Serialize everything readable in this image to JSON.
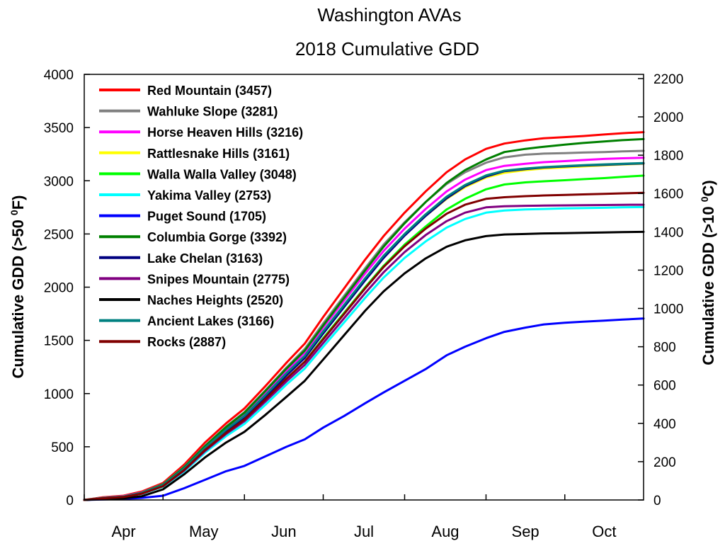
{
  "chart_data": {
    "type": "line",
    "title": "Washington AVAs",
    "subtitle": "2018 Cumulative GDD",
    "ylabel": "Cumulative GDD (>50 °F)",
    "ylabel_parts": {
      "base": "Cumulative GDD (>50 ",
      "sup": "0",
      "end": "F)"
    },
    "y2label": "Cumulative GDD (>10 °C)",
    "y2label_parts": {
      "base": "Cumulative GDD (>10 ",
      "sup": "0",
      "end": "C)"
    },
    "ylim": [
      0,
      4000
    ],
    "yticks": [
      0,
      500,
      1000,
      1500,
      2000,
      2500,
      3000,
      3500,
      4000
    ],
    "y2lim": [
      0,
      2222
    ],
    "y2ticks": [
      0,
      200,
      400,
      600,
      800,
      1000,
      1200,
      1400,
      1600,
      1800,
      2000,
      2200
    ],
    "x_unit": "day of year",
    "xlim": [
      91,
      304
    ],
    "months": [
      {
        "label": "Apr",
        "start": 91,
        "end": 121
      },
      {
        "label": "May",
        "start": 121,
        "end": 152
      },
      {
        "label": "Jun",
        "start": 152,
        "end": 182
      },
      {
        "label": "Jul",
        "start": 182,
        "end": 213
      },
      {
        "label": "Aug",
        "start": 213,
        "end": 244
      },
      {
        "label": "Sep",
        "start": 244,
        "end": 274
      },
      {
        "label": "Oct",
        "start": 274,
        "end": 304
      }
    ],
    "legend_position": "top-left",
    "x": [
      91,
      98,
      106,
      113,
      121,
      129,
      137,
      145,
      152,
      160,
      168,
      175,
      182,
      190,
      198,
      205,
      213,
      221,
      229,
      236,
      244,
      251,
      259,
      266,
      274,
      281,
      289,
      296,
      304
    ],
    "series": [
      {
        "name": "Red Mountain (3457)",
        "color": "#ff0000",
        "values": [
          0,
          25,
          40,
          80,
          160,
          330,
          540,
          720,
          860,
          1070,
          1290,
          1470,
          1720,
          1990,
          2260,
          2480,
          2700,
          2900,
          3080,
          3200,
          3300,
          3350,
          3380,
          3400,
          3410,
          3420,
          3435,
          3447,
          3457
        ]
      },
      {
        "name": "Wahluke Slope (3281)",
        "color": "#808080",
        "values": [
          0,
          20,
          35,
          72,
          150,
          310,
          510,
          690,
          825,
          1030,
          1245,
          1420,
          1660,
          1920,
          2180,
          2400,
          2610,
          2800,
          2970,
          3080,
          3170,
          3220,
          3245,
          3255,
          3260,
          3265,
          3270,
          3276,
          3281
        ]
      },
      {
        "name": "Horse Heaven Hills (3216)",
        "color": "#ff00ff",
        "values": [
          0,
          20,
          35,
          70,
          145,
          300,
          500,
          675,
          805,
          1005,
          1215,
          1385,
          1620,
          1875,
          2130,
          2340,
          2550,
          2735,
          2900,
          3010,
          3100,
          3140,
          3160,
          3175,
          3185,
          3195,
          3205,
          3211,
          3216
        ]
      },
      {
        "name": "Rattlesnake Hills (3161)",
        "color": "#ffff00",
        "values": [
          0,
          18,
          32,
          66,
          140,
          290,
          485,
          655,
          785,
          980,
          1185,
          1350,
          1580,
          1830,
          2080,
          2290,
          2490,
          2670,
          2830,
          2940,
          3030,
          3075,
          3100,
          3115,
          3125,
          3135,
          3145,
          3153,
          3161
        ]
      },
      {
        "name": "Walla Walla Valley (3048)",
        "color": "#00ff00",
        "values": [
          0,
          15,
          28,
          60,
          125,
          270,
          460,
          625,
          750,
          940,
          1140,
          1300,
          1520,
          1760,
          2000,
          2200,
          2400,
          2570,
          2730,
          2830,
          2920,
          2965,
          2985,
          2995,
          3005,
          3015,
          3025,
          3037,
          3048
        ]
      },
      {
        "name": "Yakima Valley (2753)",
        "color": "#00ffff",
        "values": [
          0,
          15,
          28,
          58,
          125,
          265,
          445,
          600,
          715,
          895,
          1085,
          1235,
          1440,
          1670,
          1900,
          2090,
          2275,
          2430,
          2560,
          2640,
          2700,
          2720,
          2730,
          2735,
          2740,
          2743,
          2746,
          2750,
          2753
        ]
      },
      {
        "name": "Puget Sound (1705)",
        "color": "#0000ff",
        "values": [
          0,
          5,
          10,
          20,
          40,
          110,
          190,
          270,
          320,
          410,
          500,
          570,
          680,
          790,
          910,
          1010,
          1120,
          1230,
          1360,
          1440,
          1520,
          1580,
          1620,
          1650,
          1665,
          1675,
          1685,
          1695,
          1705
        ]
      },
      {
        "name": "Columbia Gorge (3392)",
        "color": "#008000",
        "values": [
          0,
          18,
          32,
          68,
          145,
          305,
          505,
          685,
          820,
          1025,
          1235,
          1405,
          1640,
          1900,
          2160,
          2380,
          2600,
          2800,
          2980,
          3100,
          3200,
          3270,
          3300,
          3320,
          3340,
          3355,
          3370,
          3382,
          3392
        ]
      },
      {
        "name": "Lake Chelan (3163)",
        "color": "#000080",
        "values": [
          0,
          15,
          28,
          60,
          130,
          280,
          470,
          640,
          770,
          965,
          1170,
          1335,
          1565,
          1815,
          2065,
          2275,
          2485,
          2670,
          2835,
          2950,
          3040,
          3090,
          3110,
          3125,
          3135,
          3143,
          3150,
          3157,
          3163
        ]
      },
      {
        "name": "Snipes Mountain (2775)",
        "color": "#800080",
        "values": [
          0,
          15,
          28,
          60,
          130,
          275,
          460,
          620,
          740,
          925,
          1115,
          1270,
          1475,
          1710,
          1945,
          2140,
          2330,
          2490,
          2620,
          2700,
          2750,
          2760,
          2765,
          2767,
          2769,
          2770,
          2772,
          2774,
          2775
        ]
      },
      {
        "name": "Naches Heights (2520)",
        "color": "#000000",
        "values": [
          0,
          8,
          15,
          35,
          100,
          240,
          400,
          540,
          640,
          800,
          970,
          1120,
          1320,
          1550,
          1780,
          1960,
          2130,
          2270,
          2380,
          2440,
          2480,
          2495,
          2500,
          2505,
          2508,
          2511,
          2514,
          2517,
          2520
        ]
      },
      {
        "name": "Ancient Lakes (3166)",
        "color": "#008080",
        "values": [
          0,
          18,
          32,
          66,
          140,
          295,
          490,
          660,
          790,
          985,
          1190,
          1355,
          1585,
          1835,
          2085,
          2295,
          2500,
          2685,
          2850,
          2960,
          3050,
          3095,
          3115,
          3128,
          3138,
          3146,
          3154,
          3160,
          3166
        ]
      },
      {
        "name": "Rocks (2887)",
        "color": "#800000",
        "values": [
          0,
          15,
          28,
          60,
          130,
          280,
          470,
          630,
          755,
          945,
          1140,
          1300,
          1510,
          1750,
          1990,
          2190,
          2385,
          2550,
          2690,
          2775,
          2830,
          2845,
          2855,
          2862,
          2867,
          2872,
          2877,
          2882,
          2887
        ]
      }
    ]
  }
}
